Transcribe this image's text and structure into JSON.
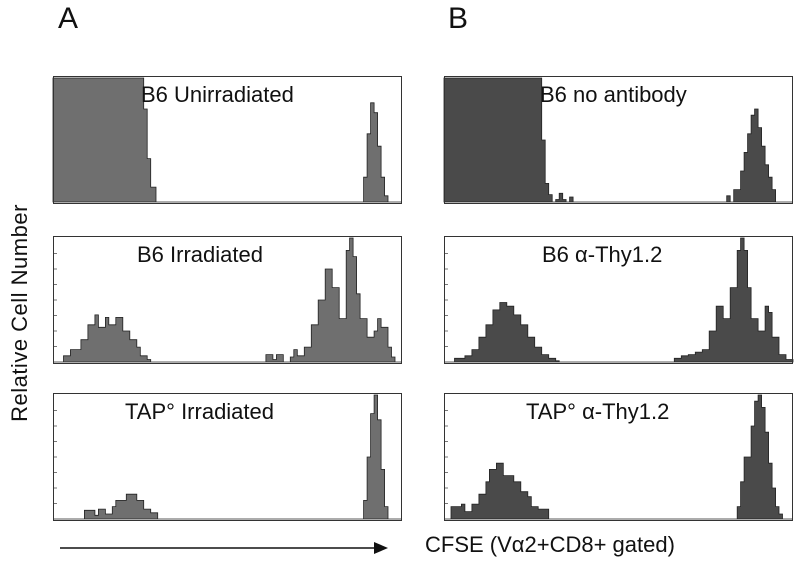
{
  "panels": {
    "a": "A",
    "b": "B"
  },
  "ylabel": "Relative Cell Number",
  "xlabel": "CFSE (Vα2+CD8+ gated)",
  "colors": {
    "fill_dark": "#4a4a4a",
    "fill_gray": "#6f6f6f",
    "frame": "#333333"
  },
  "chart_data": [
    {
      "type": "area",
      "panel": "A",
      "title": "B6 Unirradiated",
      "x": [
        0,
        0.24,
        0.26,
        0.27,
        0.28,
        0.295,
        0.88,
        0.89,
        0.9,
        0.91,
        0.92,
        0.93,
        0.94,
        0.95,
        0.96,
        1.0
      ],
      "y": [
        1.0,
        1.0,
        0.75,
        0.35,
        0.12,
        0.0,
        0.0,
        0.2,
        0.55,
        0.8,
        0.72,
        0.45,
        0.2,
        0.05,
        0.0,
        0.0
      ]
    },
    {
      "type": "area",
      "panel": "A",
      "title": "B6 Irradiated",
      "x": [
        0,
        0.03,
        0.05,
        0.08,
        0.1,
        0.12,
        0.13,
        0.15,
        0.16,
        0.18,
        0.2,
        0.22,
        0.24,
        0.25,
        0.27,
        0.28,
        0.6,
        0.61,
        0.63,
        0.64,
        0.66,
        0.68,
        0.69,
        0.7,
        0.72,
        0.74,
        0.76,
        0.78,
        0.8,
        0.82,
        0.84,
        0.85,
        0.86,
        0.87,
        0.88,
        0.9,
        0.92,
        0.93,
        0.94,
        0.96,
        0.97,
        0.98,
        1.0
      ],
      "y": [
        0.0,
        0.05,
        0.1,
        0.18,
        0.3,
        0.38,
        0.28,
        0.36,
        0.3,
        0.36,
        0.25,
        0.18,
        0.12,
        0.05,
        0.02,
        0.0,
        0.0,
        0.06,
        0.02,
        0.06,
        0.0,
        0.04,
        0.1,
        0.05,
        0.12,
        0.3,
        0.5,
        0.75,
        0.6,
        0.35,
        0.9,
        1.0,
        0.85,
        0.55,
        0.35,
        0.2,
        0.25,
        0.35,
        0.28,
        0.12,
        0.04,
        0.0,
        0.0
      ]
    },
    {
      "type": "area",
      "panel": "A",
      "title": "TAP° Irradiated",
      "x": [
        0,
        0.08,
        0.09,
        0.12,
        0.13,
        0.15,
        0.17,
        0.18,
        0.2,
        0.21,
        0.23,
        0.24,
        0.26,
        0.28,
        0.3,
        0.88,
        0.89,
        0.9,
        0.91,
        0.92,
        0.93,
        0.94,
        0.95,
        0.96,
        1.0
      ],
      "y": [
        0.0,
        0.0,
        0.07,
        0.03,
        0.08,
        0.04,
        0.1,
        0.15,
        0.15,
        0.2,
        0.2,
        0.15,
        0.08,
        0.05,
        0.0,
        0.0,
        0.15,
        0.5,
        0.85,
        1.0,
        0.8,
        0.4,
        0.1,
        0.0,
        0.0
      ]
    },
    {
      "type": "area",
      "panel": "B",
      "title": "B6 no antibody",
      "x": [
        0,
        0.26,
        0.28,
        0.29,
        0.3,
        0.31,
        0.32,
        0.33,
        0.34,
        0.35,
        0.36,
        0.37,
        0.8,
        0.81,
        0.82,
        0.83,
        0.85,
        0.86,
        0.87,
        0.88,
        0.89,
        0.9,
        0.91,
        0.92,
        0.93,
        0.94,
        0.95,
        1.0
      ],
      "y": [
        1.0,
        1.0,
        0.5,
        0.15,
        0.06,
        0.0,
        0.02,
        0.07,
        0.02,
        0.0,
        0.04,
        0.0,
        0.0,
        0.05,
        0.0,
        0.1,
        0.25,
        0.4,
        0.55,
        0.7,
        0.75,
        0.6,
        0.45,
        0.3,
        0.2,
        0.1,
        0.0,
        0.0
      ]
    },
    {
      "type": "area",
      "panel": "B",
      "title": "B6 α-Thy1.2",
      "x": [
        0,
        0.03,
        0.06,
        0.08,
        0.1,
        0.12,
        0.14,
        0.16,
        0.18,
        0.2,
        0.22,
        0.24,
        0.26,
        0.28,
        0.3,
        0.32,
        0.33,
        0.64,
        0.66,
        0.68,
        0.7,
        0.72,
        0.74,
        0.76,
        0.78,
        0.8,
        0.82,
        0.84,
        0.85,
        0.86,
        0.87,
        0.88,
        0.9,
        0.92,
        0.93,
        0.94,
        0.96,
        0.98,
        1.0
      ],
      "y": [
        0.0,
        0.03,
        0.05,
        0.1,
        0.2,
        0.3,
        0.42,
        0.48,
        0.45,
        0.38,
        0.3,
        0.2,
        0.12,
        0.06,
        0.03,
        0.01,
        0.0,
        0.0,
        0.03,
        0.05,
        0.06,
        0.08,
        0.1,
        0.25,
        0.45,
        0.35,
        0.6,
        0.9,
        1.0,
        0.9,
        0.6,
        0.35,
        0.25,
        0.45,
        0.4,
        0.2,
        0.06,
        0.02,
        0.0
      ]
    },
    {
      "type": "area",
      "panel": "B",
      "title": "TAP° α-Thy1.2",
      "x": [
        0,
        0.02,
        0.05,
        0.06,
        0.08,
        0.1,
        0.12,
        0.13,
        0.15,
        0.17,
        0.2,
        0.22,
        0.24,
        0.25,
        0.27,
        0.3,
        0.83,
        0.84,
        0.85,
        0.86,
        0.88,
        0.89,
        0.9,
        0.91,
        0.92,
        0.93,
        0.94,
        0.95,
        0.96,
        0.97,
        1.0
      ],
      "y": [
        0.0,
        0.1,
        0.12,
        0.06,
        0.12,
        0.2,
        0.3,
        0.4,
        0.45,
        0.35,
        0.3,
        0.22,
        0.18,
        0.1,
        0.08,
        0.0,
        0.0,
        0.1,
        0.3,
        0.5,
        0.75,
        0.95,
        1.0,
        0.9,
        0.7,
        0.45,
        0.25,
        0.1,
        0.04,
        0.0,
        0.0
      ]
    }
  ]
}
